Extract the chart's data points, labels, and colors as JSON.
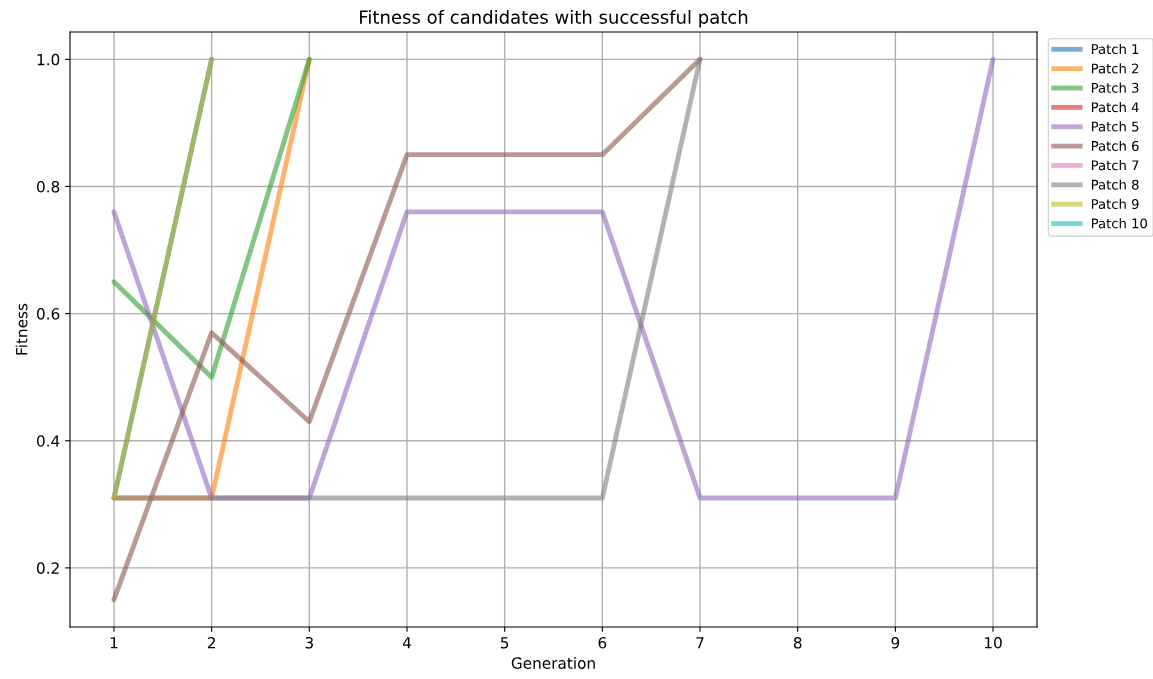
{
  "chart_data": {
    "type": "line",
    "title": "Fitness of candidates with successful patch",
    "xlabel": "Generation",
    "ylabel": "Fitness",
    "x": [
      1,
      2,
      3,
      4,
      5,
      6,
      7,
      8,
      9,
      10
    ],
    "xlim": [
      0.55,
      10.45
    ],
    "xticks": [
      1,
      2,
      3,
      4,
      5,
      6,
      7,
      8,
      9,
      10
    ],
    "ylim": [
      0.107,
      1.043
    ],
    "yticks": [
      {
        "value": 0.2,
        "label": "0.2"
      },
      {
        "value": 0.4,
        "label": "0.4"
      },
      {
        "value": 0.6,
        "label": "0.6"
      },
      {
        "value": 0.8,
        "label": "0.8"
      },
      {
        "value": 1.0,
        "label": "1.0"
      }
    ],
    "grid": true,
    "legend": "top right",
    "marker": "none",
    "line_style": "solid",
    "series": [
      {
        "name": "Patch 1",
        "color": "#1f77b4",
        "values": [
          0.31,
          1.0,
          null,
          null,
          null,
          null,
          null,
          null,
          null,
          null
        ]
      },
      {
        "name": "Patch 2",
        "color": "#ff7f0e",
        "values": [
          0.31,
          0.31,
          1.0,
          null,
          null,
          null,
          null,
          null,
          null,
          null
        ]
      },
      {
        "name": "Patch 3",
        "color": "#2ca02c",
        "values": [
          0.65,
          0.5,
          1.0,
          null,
          null,
          null,
          null,
          null,
          null,
          null
        ]
      },
      {
        "name": "Patch 4",
        "color": "#d62728",
        "values": [
          null,
          null,
          null,
          null,
          null,
          null,
          null,
          null,
          null,
          null
        ]
      },
      {
        "name": "Patch 5",
        "color": "#9467bd",
        "values": [
          0.76,
          0.31,
          0.31,
          0.76,
          0.76,
          0.76,
          0.31,
          0.31,
          0.31,
          1.0
        ]
      },
      {
        "name": "Patch 6",
        "color": "#8c564b",
        "values": [
          0.15,
          0.57,
          0.43,
          0.85,
          0.85,
          0.85,
          1.0,
          null,
          null,
          null
        ]
      },
      {
        "name": "Patch 7",
        "color": "#e377c2",
        "values": [
          null,
          null,
          null,
          null,
          null,
          null,
          null,
          null,
          null,
          null
        ]
      },
      {
        "name": "Patch 8",
        "color": "#7f7f7f",
        "values": [
          0.31,
          0.31,
          0.31,
          0.31,
          0.31,
          0.31,
          1.0,
          null,
          null,
          null
        ]
      },
      {
        "name": "Patch 9",
        "color": "#bcbd22",
        "values": [
          0.31,
          1.0,
          null,
          null,
          null,
          null,
          null,
          null,
          null,
          null
        ]
      },
      {
        "name": "Patch 10",
        "color": "#17becf",
        "values": [
          null,
          null,
          null,
          null,
          null,
          null,
          null,
          null,
          null,
          null
        ]
      }
    ]
  }
}
